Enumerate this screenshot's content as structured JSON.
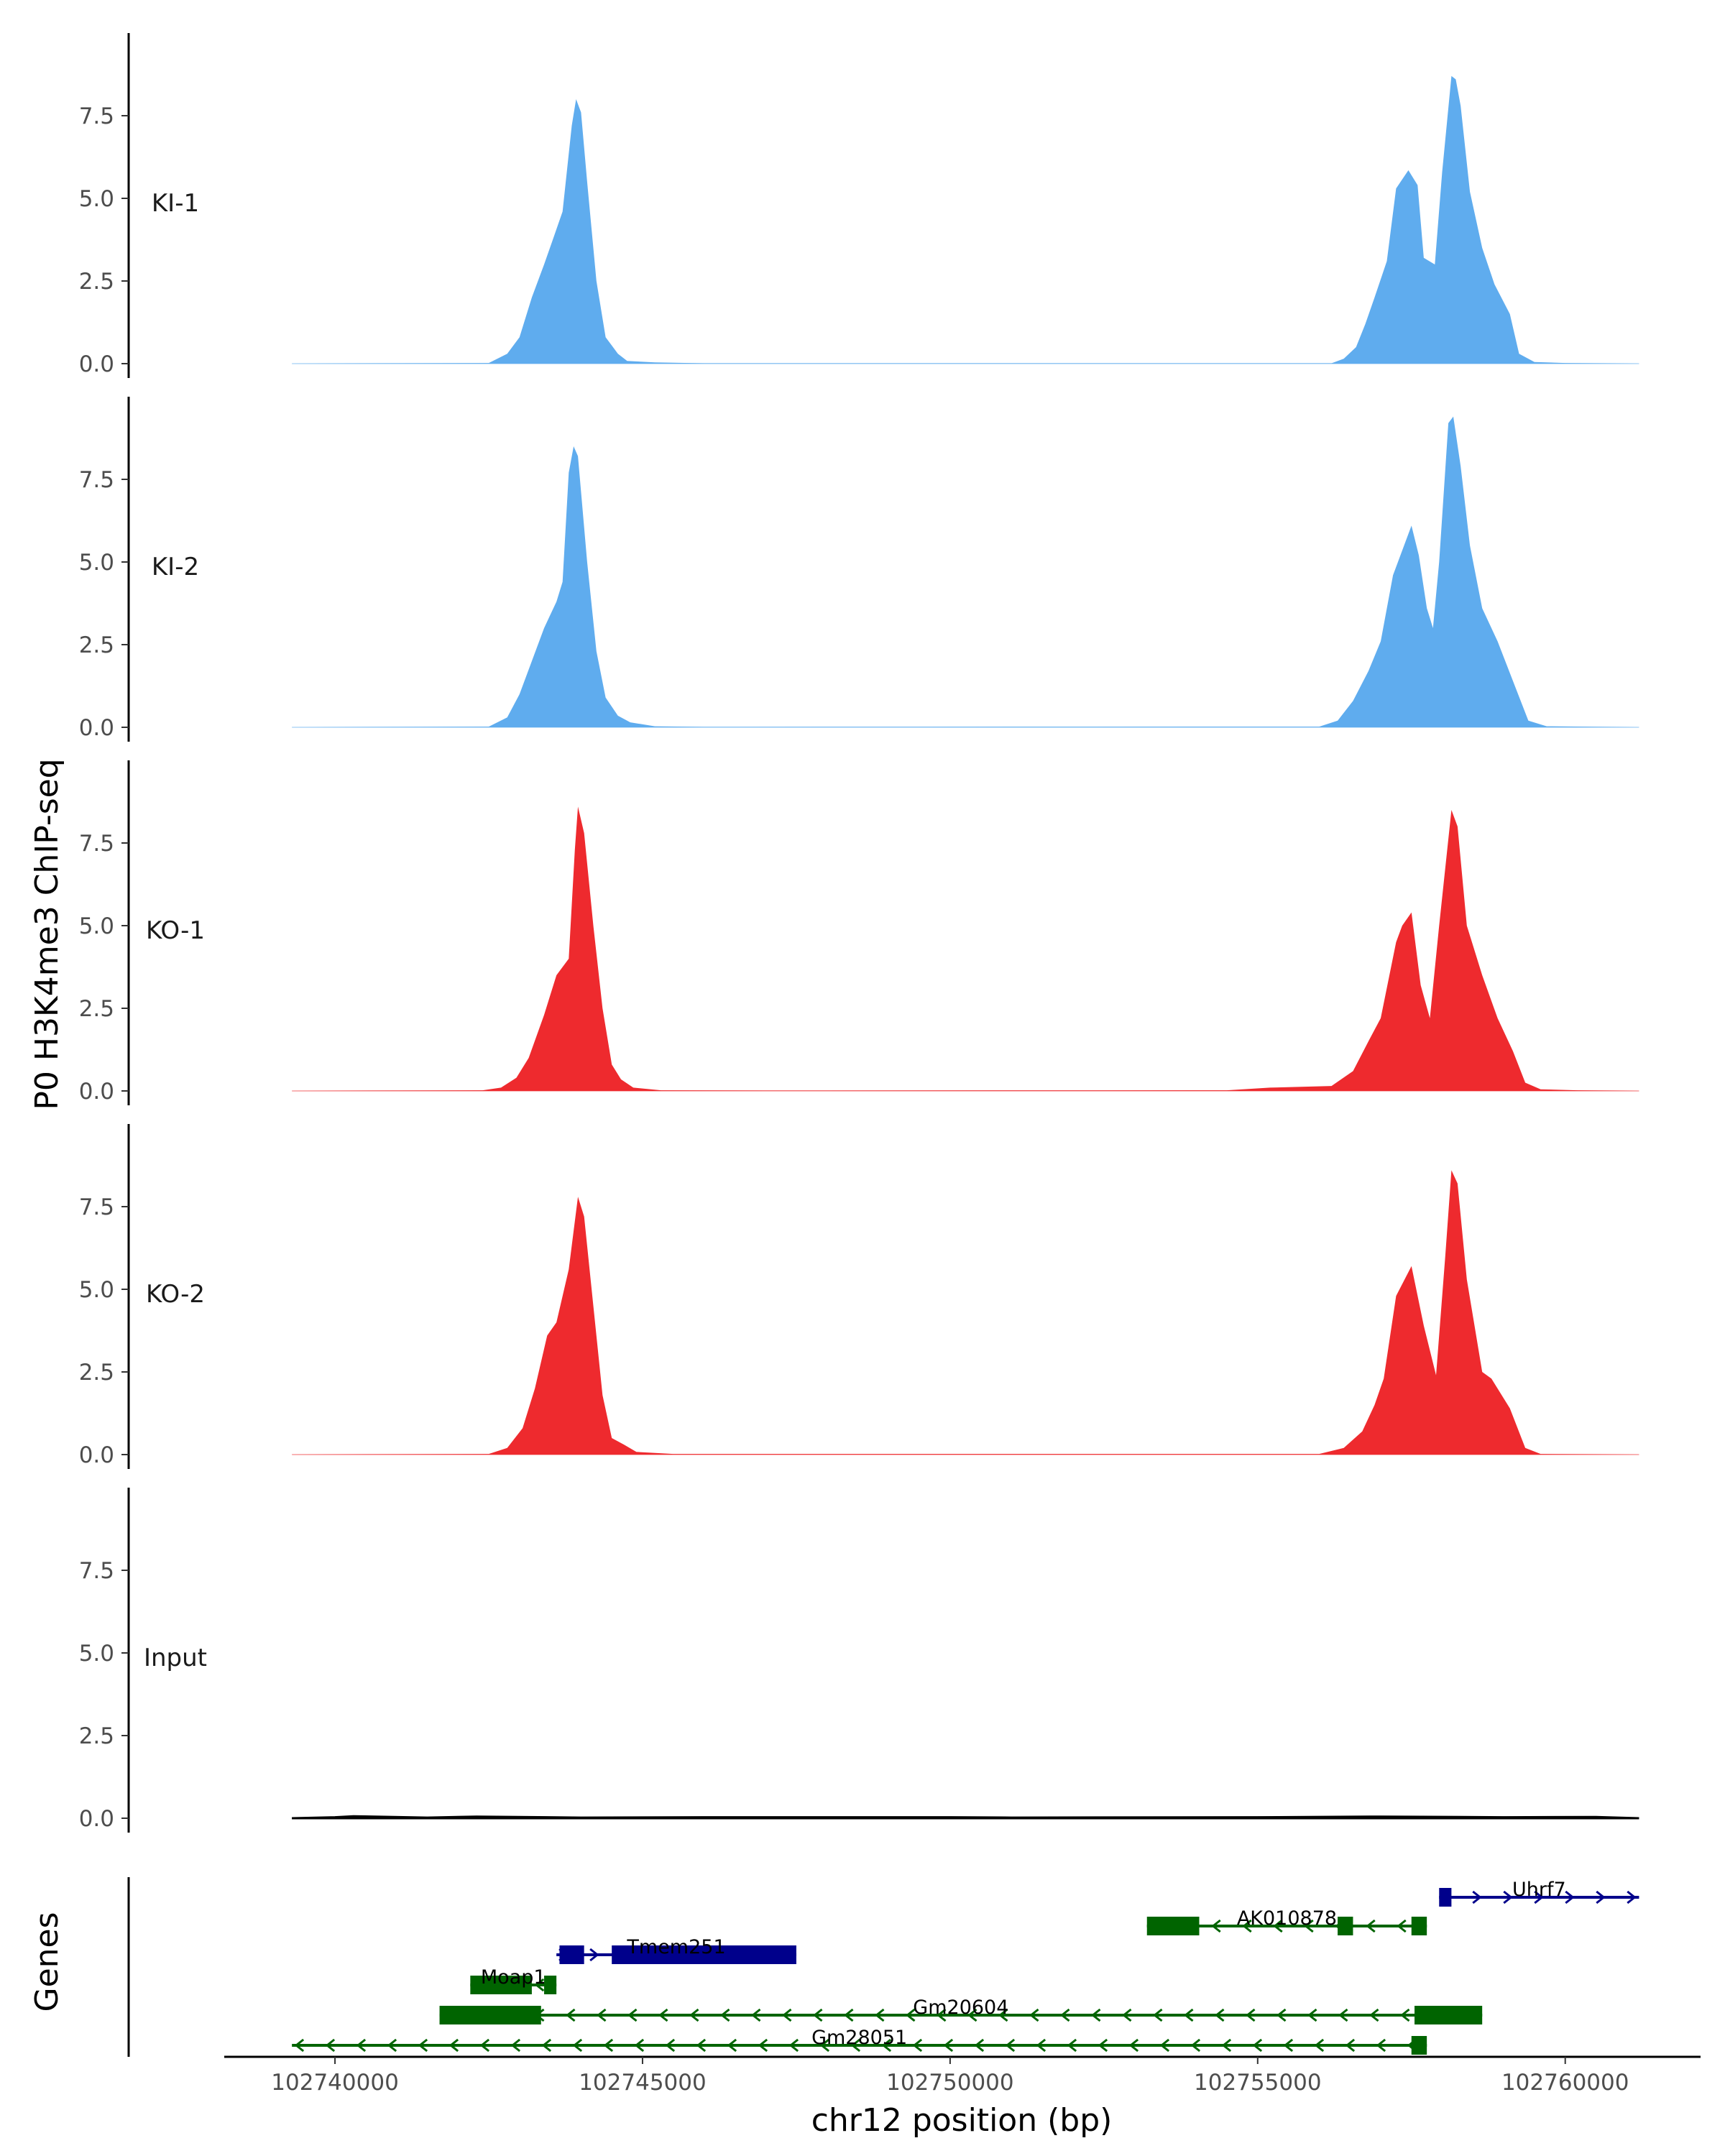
{
  "chart_data": {
    "type": "area",
    "title": "",
    "ylabel": "P0 H3K4me3 ChIP-seq",
    "xlabel": "chr12 position (bp)",
    "genes_axis_label": "Genes",
    "xlim": [
      102738200,
      102762200
    ],
    "ylim": [
      0,
      10
    ],
    "x_ticks": [
      102740000,
      102745000,
      102750000,
      102755000,
      102760000
    ],
    "x_tick_labels": [
      "102740000",
      "102745000",
      "102750000",
      "102755000",
      "102760000"
    ],
    "y_ticks": [
      0,
      2.5,
      5,
      7.5
    ],
    "y_tick_labels": [
      "0.0",
      "2.5",
      "5.0",
      "7.5"
    ],
    "signal_range": [
      102739300,
      102761200
    ],
    "tracks": [
      {
        "name": "KI-1",
        "color": "#5FACEE",
        "points": [
          [
            102739300,
            0
          ],
          [
            102742500,
            0.02
          ],
          [
            102742800,
            0.3
          ],
          [
            102743000,
            0.8
          ],
          [
            102743200,
            2.0
          ],
          [
            102743400,
            3.0
          ],
          [
            102743550,
            3.8
          ],
          [
            102743700,
            4.6
          ],
          [
            102743850,
            7.2
          ],
          [
            102743920,
            8.0
          ],
          [
            102744000,
            7.6
          ],
          [
            102744100,
            5.5
          ],
          [
            102744250,
            2.5
          ],
          [
            102744400,
            0.8
          ],
          [
            102744500,
            0.55
          ],
          [
            102744600,
            0.3
          ],
          [
            102744750,
            0.08
          ],
          [
            102745200,
            0.04
          ],
          [
            102746000,
            0.01
          ],
          [
            102756200,
            0.01
          ],
          [
            102756400,
            0.15
          ],
          [
            102756600,
            0.5
          ],
          [
            102756750,
            1.2
          ],
          [
            102756900,
            2.0
          ],
          [
            102757100,
            3.1
          ],
          [
            102757250,
            5.3
          ],
          [
            102757450,
            5.85
          ],
          [
            102757600,
            5.4
          ],
          [
            102757700,
            3.2
          ],
          [
            102757880,
            3.0
          ],
          [
            102758000,
            5.8
          ],
          [
            102758150,
            8.7
          ],
          [
            102758220,
            8.6
          ],
          [
            102758300,
            7.8
          ],
          [
            102758450,
            5.2
          ],
          [
            102758650,
            3.5
          ],
          [
            102758850,
            2.4
          ],
          [
            102759100,
            1.5
          ],
          [
            102759250,
            0.3
          ],
          [
            102759500,
            0.05
          ],
          [
            102760000,
            0.02
          ],
          [
            102761200,
            0
          ]
        ]
      },
      {
        "name": "KI-2",
        "color": "#5FACEE",
        "points": [
          [
            102739300,
            0
          ],
          [
            102742500,
            0.02
          ],
          [
            102742800,
            0.3
          ],
          [
            102743000,
            1.0
          ],
          [
            102743200,
            2.0
          ],
          [
            102743400,
            3.0
          ],
          [
            102743600,
            3.8
          ],
          [
            102743700,
            4.4
          ],
          [
            102743800,
            7.7
          ],
          [
            102743880,
            8.5
          ],
          [
            102743950,
            8.2
          ],
          [
            102744100,
            5.0
          ],
          [
            102744250,
            2.3
          ],
          [
            102744400,
            0.9
          ],
          [
            102744600,
            0.35
          ],
          [
            102744800,
            0.15
          ],
          [
            102745200,
            0.03
          ],
          [
            102746000,
            0.01
          ],
          [
            102756000,
            0.02
          ],
          [
            102756300,
            0.2
          ],
          [
            102756550,
            0.8
          ],
          [
            102756800,
            1.7
          ],
          [
            102757000,
            2.6
          ],
          [
            102757200,
            4.6
          ],
          [
            102757500,
            6.1
          ],
          [
            102757620,
            5.2
          ],
          [
            102757750,
            3.6
          ],
          [
            102757850,
            3.0
          ],
          [
            102757950,
            5.0
          ],
          [
            102758100,
            9.2
          ],
          [
            102758180,
            9.4
          ],
          [
            102758300,
            7.9
          ],
          [
            102758450,
            5.5
          ],
          [
            102758650,
            3.6
          ],
          [
            102758900,
            2.6
          ],
          [
            102759150,
            1.4
          ],
          [
            102759400,
            0.2
          ],
          [
            102759700,
            0.03
          ],
          [
            102761200,
            0
          ]
        ]
      },
      {
        "name": "KO-1",
        "color": "#EE2A2E",
        "points": [
          [
            102739300,
            0
          ],
          [
            102742400,
            0.02
          ],
          [
            102742700,
            0.1
          ],
          [
            102742950,
            0.4
          ],
          [
            102743150,
            1.0
          ],
          [
            102743400,
            2.3
          ],
          [
            102743600,
            3.5
          ],
          [
            102743800,
            4.0
          ],
          [
            102743900,
            7.3
          ],
          [
            102743950,
            8.6
          ],
          [
            102744050,
            7.8
          ],
          [
            102744200,
            5.0
          ],
          [
            102744350,
            2.5
          ],
          [
            102744500,
            0.8
          ],
          [
            102744650,
            0.35
          ],
          [
            102744850,
            0.1
          ],
          [
            102745300,
            0.02
          ],
          [
            102747000,
            0.01
          ],
          [
            102754500,
            0.02
          ],
          [
            102755200,
            0.1
          ],
          [
            102756200,
            0.15
          ],
          [
            102756550,
            0.6
          ],
          [
            102756800,
            1.5
          ],
          [
            102757000,
            2.2
          ],
          [
            102757250,
            4.5
          ],
          [
            102757350,
            5.0
          ],
          [
            102757500,
            5.4
          ],
          [
            102757650,
            3.2
          ],
          [
            102757800,
            2.2
          ],
          [
            102757950,
            5.0
          ],
          [
            102758150,
            8.5
          ],
          [
            102758250,
            8.0
          ],
          [
            102758400,
            5.0
          ],
          [
            102758650,
            3.5
          ],
          [
            102758900,
            2.2
          ],
          [
            102759150,
            1.2
          ],
          [
            102759350,
            0.25
          ],
          [
            102759600,
            0.05
          ],
          [
            102760200,
            0.02
          ],
          [
            102761200,
            0
          ]
        ]
      },
      {
        "name": "KO-2",
        "color": "#EE2A2E",
        "points": [
          [
            102739300,
            0
          ],
          [
            102742500,
            0.02
          ],
          [
            102742800,
            0.2
          ],
          [
            102743050,
            0.8
          ],
          [
            102743250,
            2.0
          ],
          [
            102743450,
            3.6
          ],
          [
            102743600,
            4.0
          ],
          [
            102743800,
            5.6
          ],
          [
            102743950,
            7.8
          ],
          [
            102744050,
            7.2
          ],
          [
            102744200,
            4.5
          ],
          [
            102744350,
            1.8
          ],
          [
            102744500,
            0.5
          ],
          [
            102744700,
            0.3
          ],
          [
            102744900,
            0.08
          ],
          [
            102745500,
            0.02
          ],
          [
            102756000,
            0.02
          ],
          [
            102756400,
            0.2
          ],
          [
            102756700,
            0.7
          ],
          [
            102756900,
            1.5
          ],
          [
            102757050,
            2.3
          ],
          [
            102757250,
            4.8
          ],
          [
            102757500,
            5.7
          ],
          [
            102757700,
            3.9
          ],
          [
            102757900,
            2.4
          ],
          [
            102758050,
            6.0
          ],
          [
            102758150,
            8.6
          ],
          [
            102758250,
            8.2
          ],
          [
            102758400,
            5.3
          ],
          [
            102758650,
            2.5
          ],
          [
            102758800,
            2.3
          ],
          [
            102759100,
            1.4
          ],
          [
            102759350,
            0.2
          ],
          [
            102759600,
            0.02
          ],
          [
            102761200,
            0
          ]
        ]
      },
      {
        "name": "Input",
        "color": "#000000",
        "points": [
          [
            102739300,
            0
          ],
          [
            102740000,
            0.03
          ],
          [
            102740300,
            0.06
          ],
          [
            102741500,
            0.02
          ],
          [
            102742300,
            0.05
          ],
          [
            102744000,
            0.02
          ],
          [
            102746000,
            0.03
          ],
          [
            102750000,
            0.03
          ],
          [
            102751000,
            0.02
          ],
          [
            102755000,
            0.03
          ],
          [
            102757000,
            0.05
          ],
          [
            102759000,
            0.03
          ],
          [
            102760500,
            0.04
          ],
          [
            102761200,
            0
          ]
        ]
      }
    ],
    "genes": [
      {
        "name": "Uhrf7",
        "strand": "+",
        "color": "#00008B",
        "start": 102757950,
        "end": 102761200,
        "row": 0,
        "exons": [
          [
            102757950,
            102758150
          ]
        ]
      },
      {
        "name": "AK010878",
        "strand": "-",
        "color": "#006400",
        "start": 102753200,
        "end": 102757750,
        "row": 1,
        "exons": [
          [
            102753200,
            102754050
          ],
          [
            102756300,
            102756550
          ],
          [
            102757500,
            102757750
          ]
        ]
      },
      {
        "name": "Tmem251",
        "strand": "+",
        "color": "#00008B",
        "start": 102743600,
        "end": 102747500,
        "row": 2,
        "exons": [
          [
            102743650,
            102744050
          ],
          [
            102744500,
            102747500
          ]
        ]
      },
      {
        "name": "Moap1",
        "strand": "-",
        "color": "#006400",
        "start": 102742200,
        "end": 102743600,
        "row": 3,
        "exons": [
          [
            102742200,
            102743200
          ],
          [
            102743400,
            102743600
          ]
        ]
      },
      {
        "name": "Gm20604",
        "strand": "-",
        "color": "#006400",
        "start": 102741700,
        "end": 102758650,
        "row": 4,
        "exons": [
          [
            102741700,
            102743350
          ],
          [
            102757550,
            102758650
          ]
        ]
      },
      {
        "name": "Gm28051",
        "strand": "-",
        "color": "#006400",
        "start": 102739300,
        "end": 102757750,
        "row": 5,
        "exons": [
          [
            102757500,
            102757750
          ]
        ]
      }
    ]
  }
}
